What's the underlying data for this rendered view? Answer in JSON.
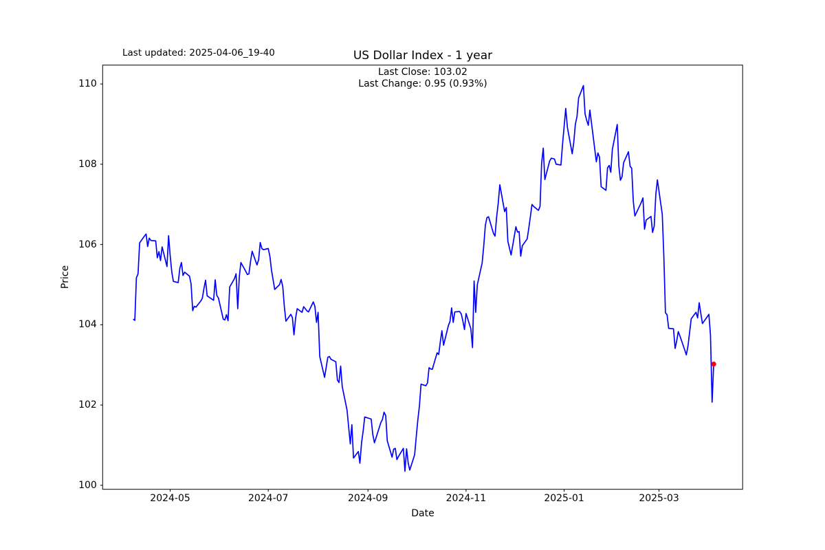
{
  "annotations": {
    "last_updated": "Last updated: 2025-04-06_19-40"
  },
  "chart_data": {
    "type": "line",
    "title": "US Dollar Index - 1 year",
    "subtitle_line1": "Last Close: 103.02",
    "subtitle_line2": "Last Change: 0.95 (0.93%)",
    "last_close": 103.02,
    "last_change": "0.95 (0.93%)",
    "xlabel": "Date",
    "ylabel": "Price",
    "line_color": "#0000ff",
    "marker_color": "#ff0000",
    "axis_color": "#000000",
    "grid": false,
    "xlim": [
      "2024-03-20",
      "2025-04-22"
    ],
    "ylim": [
      99.9,
      110.47
    ],
    "y_ticks": [
      100,
      102,
      104,
      106,
      108,
      110
    ],
    "x_ticks": [
      {
        "date": "2024-05-01",
        "label": "2024-05"
      },
      {
        "date": "2024-07-01",
        "label": "2024-07"
      },
      {
        "date": "2024-09-01",
        "label": "2024-09"
      },
      {
        "date": "2024-11-01",
        "label": "2024-11"
      },
      {
        "date": "2025-01-01",
        "label": "2025-01"
      },
      {
        "date": "2025-03-01",
        "label": "2025-03"
      }
    ],
    "series": [
      {
        "name": "US Dollar Index",
        "points": [
          [
            "2024-04-08",
            104.14
          ],
          [
            "2024-04-09",
            104.11
          ],
          [
            "2024-04-10",
            105.17
          ],
          [
            "2024-04-11",
            105.27
          ],
          [
            "2024-04-12",
            106.04
          ],
          [
            "2024-04-15",
            106.21
          ],
          [
            "2024-04-16",
            106.26
          ],
          [
            "2024-04-17",
            105.95
          ],
          [
            "2024-04-18",
            106.16
          ],
          [
            "2024-04-19",
            106.1
          ],
          [
            "2024-04-22",
            106.09
          ],
          [
            "2024-04-23",
            105.67
          ],
          [
            "2024-04-24",
            105.82
          ],
          [
            "2024-04-25",
            105.6
          ],
          [
            "2024-04-26",
            105.94
          ],
          [
            "2024-04-29",
            105.45
          ],
          [
            "2024-04-30",
            106.22
          ],
          [
            "2024-05-01",
            105.73
          ],
          [
            "2024-05-02",
            105.31
          ],
          [
            "2024-05-03",
            105.08
          ],
          [
            "2024-05-06",
            105.05
          ],
          [
            "2024-05-07",
            105.41
          ],
          [
            "2024-05-08",
            105.55
          ],
          [
            "2024-05-09",
            105.23
          ],
          [
            "2024-05-10",
            105.31
          ],
          [
            "2024-05-13",
            105.21
          ],
          [
            "2024-05-14",
            105.02
          ],
          [
            "2024-05-15",
            104.35
          ],
          [
            "2024-05-16",
            104.46
          ],
          [
            "2024-05-17",
            104.44
          ],
          [
            "2024-05-20",
            104.59
          ],
          [
            "2024-05-21",
            104.66
          ],
          [
            "2024-05-22",
            104.91
          ],
          [
            "2024-05-23",
            105.11
          ],
          [
            "2024-05-24",
            104.72
          ],
          [
            "2024-05-28",
            104.61
          ],
          [
            "2024-05-29",
            105.12
          ],
          [
            "2024-05-30",
            104.73
          ],
          [
            "2024-05-31",
            104.67
          ],
          [
            "2024-06-03",
            104.14
          ],
          [
            "2024-06-04",
            104.12
          ],
          [
            "2024-06-05",
            104.25
          ],
          [
            "2024-06-06",
            104.1
          ],
          [
            "2024-06-07",
            104.94
          ],
          [
            "2024-06-10",
            105.15
          ],
          [
            "2024-06-11",
            105.27
          ],
          [
            "2024-06-12",
            104.4
          ],
          [
            "2024-06-13",
            105.2
          ],
          [
            "2024-06-14",
            105.55
          ],
          [
            "2024-06-17",
            105.33
          ],
          [
            "2024-06-18",
            105.25
          ],
          [
            "2024-06-19",
            105.27
          ],
          [
            "2024-06-20",
            105.59
          ],
          [
            "2024-06-21",
            105.83
          ],
          [
            "2024-06-24",
            105.49
          ],
          [
            "2024-06-25",
            105.62
          ],
          [
            "2024-06-26",
            106.05
          ],
          [
            "2024-06-27",
            105.9
          ],
          [
            "2024-06-28",
            105.87
          ],
          [
            "2024-07-01",
            105.9
          ],
          [
            "2024-07-02",
            105.7
          ],
          [
            "2024-07-03",
            105.36
          ],
          [
            "2024-07-05",
            104.88
          ],
          [
            "2024-07-08",
            105.0
          ],
          [
            "2024-07-09",
            105.13
          ],
          [
            "2024-07-10",
            104.95
          ],
          [
            "2024-07-11",
            104.45
          ],
          [
            "2024-07-12",
            104.09
          ],
          [
            "2024-07-15",
            104.26
          ],
          [
            "2024-07-16",
            104.18
          ],
          [
            "2024-07-17",
            103.75
          ],
          [
            "2024-07-18",
            104.17
          ],
          [
            "2024-07-19",
            104.4
          ],
          [
            "2024-07-22",
            104.31
          ],
          [
            "2024-07-23",
            104.45
          ],
          [
            "2024-07-24",
            104.4
          ],
          [
            "2024-07-25",
            104.35
          ],
          [
            "2024-07-26",
            104.32
          ],
          [
            "2024-07-29",
            104.57
          ],
          [
            "2024-07-30",
            104.46
          ],
          [
            "2024-07-31",
            104.06
          ],
          [
            "2024-08-01",
            104.31
          ],
          [
            "2024-08-02",
            103.21
          ],
          [
            "2024-08-05",
            102.69
          ],
          [
            "2024-08-06",
            102.93
          ],
          [
            "2024-08-07",
            103.19
          ],
          [
            "2024-08-08",
            103.21
          ],
          [
            "2024-08-09",
            103.14
          ],
          [
            "2024-08-12",
            103.08
          ],
          [
            "2024-08-13",
            102.62
          ],
          [
            "2024-08-14",
            102.56
          ],
          [
            "2024-08-15",
            102.97
          ],
          [
            "2024-08-16",
            102.46
          ],
          [
            "2024-08-19",
            101.87
          ],
          [
            "2024-08-20",
            101.44
          ],
          [
            "2024-08-21",
            101.03
          ],
          [
            "2024-08-22",
            101.51
          ],
          [
            "2024-08-23",
            100.68
          ],
          [
            "2024-08-26",
            100.84
          ],
          [
            "2024-08-27",
            100.55
          ],
          [
            "2024-08-28",
            101.06
          ],
          [
            "2024-08-29",
            101.35
          ],
          [
            "2024-08-30",
            101.7
          ],
          [
            "2024-09-03",
            101.65
          ],
          [
            "2024-09-04",
            101.27
          ],
          [
            "2024-09-05",
            101.06
          ],
          [
            "2024-09-06",
            101.18
          ],
          [
            "2024-09-09",
            101.56
          ],
          [
            "2024-09-10",
            101.64
          ],
          [
            "2024-09-11",
            101.82
          ],
          [
            "2024-09-12",
            101.74
          ],
          [
            "2024-09-13",
            101.11
          ],
          [
            "2024-09-16",
            100.7
          ],
          [
            "2024-09-17",
            100.9
          ],
          [
            "2024-09-18",
            100.92
          ],
          [
            "2024-09-19",
            100.64
          ],
          [
            "2024-09-20",
            100.72
          ],
          [
            "2024-09-23",
            100.92
          ],
          [
            "2024-09-24",
            100.35
          ],
          [
            "2024-09-25",
            100.91
          ],
          [
            "2024-09-26",
            100.56
          ],
          [
            "2024-09-27",
            100.38
          ],
          [
            "2024-09-30",
            100.76
          ],
          [
            "2024-10-01",
            101.2
          ],
          [
            "2024-10-02",
            101.62
          ],
          [
            "2024-10-03",
            101.98
          ],
          [
            "2024-10-04",
            102.52
          ],
          [
            "2024-10-07",
            102.48
          ],
          [
            "2024-10-08",
            102.55
          ],
          [
            "2024-10-09",
            102.93
          ],
          [
            "2024-10-10",
            102.9
          ],
          [
            "2024-10-11",
            102.89
          ],
          [
            "2024-10-14",
            103.3
          ],
          [
            "2024-10-15",
            103.26
          ],
          [
            "2024-10-16",
            103.58
          ],
          [
            "2024-10-17",
            103.85
          ],
          [
            "2024-10-18",
            103.49
          ],
          [
            "2024-10-21",
            103.98
          ],
          [
            "2024-10-22",
            104.08
          ],
          [
            "2024-10-23",
            104.42
          ],
          [
            "2024-10-24",
            104.06
          ],
          [
            "2024-10-25",
            104.32
          ],
          [
            "2024-10-28",
            104.33
          ],
          [
            "2024-10-29",
            104.27
          ],
          [
            "2024-10-30",
            104.1
          ],
          [
            "2024-10-31",
            103.88
          ],
          [
            "2024-11-01",
            104.28
          ],
          [
            "2024-11-04",
            103.9
          ],
          [
            "2024-11-05",
            103.43
          ],
          [
            "2024-11-06",
            105.09
          ],
          [
            "2024-11-07",
            104.31
          ],
          [
            "2024-11-08",
            105.0
          ],
          [
            "2024-11-11",
            105.54
          ],
          [
            "2024-11-12",
            105.96
          ],
          [
            "2024-11-13",
            106.48
          ],
          [
            "2024-11-14",
            106.67
          ],
          [
            "2024-11-15",
            106.69
          ],
          [
            "2024-11-18",
            106.28
          ],
          [
            "2024-11-19",
            106.21
          ],
          [
            "2024-11-20",
            106.67
          ],
          [
            "2024-11-21",
            107.03
          ],
          [
            "2024-11-22",
            107.49
          ],
          [
            "2024-11-25",
            106.82
          ],
          [
            "2024-11-26",
            106.92
          ],
          [
            "2024-11-27",
            106.08
          ],
          [
            "2024-11-29",
            105.74
          ],
          [
            "2024-12-02",
            106.44
          ],
          [
            "2024-12-03",
            106.31
          ],
          [
            "2024-12-04",
            106.32
          ],
          [
            "2024-12-05",
            105.71
          ],
          [
            "2024-12-06",
            105.97
          ],
          [
            "2024-12-09",
            106.14
          ],
          [
            "2024-12-10",
            106.4
          ],
          [
            "2024-12-11",
            106.7
          ],
          [
            "2024-12-12",
            107.0
          ],
          [
            "2024-12-13",
            106.95
          ],
          [
            "2024-12-16",
            106.85
          ],
          [
            "2024-12-17",
            106.95
          ],
          [
            "2024-12-18",
            108.02
          ],
          [
            "2024-12-19",
            108.4
          ],
          [
            "2024-12-20",
            107.62
          ],
          [
            "2024-12-23",
            108.08
          ],
          [
            "2024-12-24",
            108.15
          ],
          [
            "2024-12-26",
            108.13
          ],
          [
            "2024-12-27",
            108.0
          ],
          [
            "2024-12-30",
            107.98
          ],
          [
            "2024-12-31",
            108.49
          ],
          [
            "2025-01-02",
            109.39
          ],
          [
            "2025-01-03",
            108.92
          ],
          [
            "2025-01-06",
            108.26
          ],
          [
            "2025-01-07",
            108.55
          ],
          [
            "2025-01-08",
            109.0
          ],
          [
            "2025-01-09",
            109.19
          ],
          [
            "2025-01-10",
            109.65
          ],
          [
            "2025-01-13",
            109.96
          ],
          [
            "2025-01-14",
            109.25
          ],
          [
            "2025-01-15",
            109.1
          ],
          [
            "2025-01-16",
            108.97
          ],
          [
            "2025-01-17",
            109.35
          ],
          [
            "2025-01-21",
            108.06
          ],
          [
            "2025-01-22",
            108.28
          ],
          [
            "2025-01-23",
            108.18
          ],
          [
            "2025-01-24",
            107.44
          ],
          [
            "2025-01-27",
            107.35
          ],
          [
            "2025-01-28",
            107.91
          ],
          [
            "2025-01-29",
            107.97
          ],
          [
            "2025-01-30",
            107.8
          ],
          [
            "2025-01-31",
            108.37
          ],
          [
            "2025-02-03",
            108.99
          ],
          [
            "2025-02-04",
            107.96
          ],
          [
            "2025-02-05",
            107.6
          ],
          [
            "2025-02-06",
            107.69
          ],
          [
            "2025-02-07",
            108.04
          ],
          [
            "2025-02-10",
            108.31
          ],
          [
            "2025-02-11",
            107.95
          ],
          [
            "2025-02-12",
            107.9
          ],
          [
            "2025-02-13",
            107.07
          ],
          [
            "2025-02-14",
            106.71
          ],
          [
            "2025-02-18",
            107.05
          ],
          [
            "2025-02-19",
            107.16
          ],
          [
            "2025-02-20",
            106.38
          ],
          [
            "2025-02-21",
            106.61
          ],
          [
            "2025-02-24",
            106.7
          ],
          [
            "2025-02-25",
            106.3
          ],
          [
            "2025-02-26",
            106.46
          ],
          [
            "2025-02-27",
            107.24
          ],
          [
            "2025-02-28",
            107.61
          ],
          [
            "2025-03-03",
            106.75
          ],
          [
            "2025-03-04",
            105.7
          ],
          [
            "2025-03-05",
            104.3
          ],
          [
            "2025-03-06",
            104.25
          ],
          [
            "2025-03-07",
            103.91
          ],
          [
            "2025-03-10",
            103.9
          ],
          [
            "2025-03-11",
            103.41
          ],
          [
            "2025-03-12",
            103.6
          ],
          [
            "2025-03-13",
            103.83
          ],
          [
            "2025-03-14",
            103.72
          ],
          [
            "2025-03-17",
            103.37
          ],
          [
            "2025-03-18",
            103.25
          ],
          [
            "2025-03-19",
            103.47
          ],
          [
            "2025-03-20",
            103.8
          ],
          [
            "2025-03-21",
            104.15
          ],
          [
            "2025-03-24",
            104.31
          ],
          [
            "2025-03-25",
            104.17
          ],
          [
            "2025-03-26",
            104.55
          ],
          [
            "2025-03-27",
            104.28
          ],
          [
            "2025-03-28",
            104.03
          ],
          [
            "2025-03-31",
            104.2
          ],
          [
            "2025-04-01",
            104.26
          ],
          [
            "2025-04-02",
            103.75
          ],
          [
            "2025-04-03",
            102.07
          ],
          [
            "2025-04-04",
            103.02
          ]
        ]
      }
    ]
  }
}
